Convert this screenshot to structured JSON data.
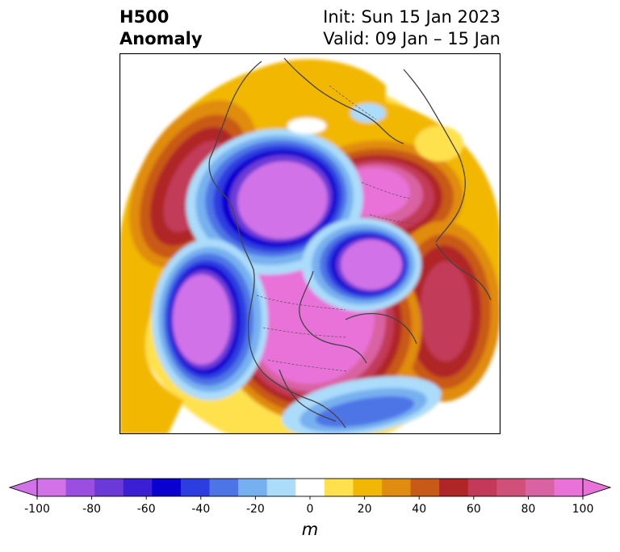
{
  "title": {
    "left_line1": "H500",
    "left_line2": "Anomaly",
    "right_line1": "Init: Sun 15 Jan 2023",
    "right_line2": "Valid: 09 Jan – 15 Jan"
  },
  "colorbar": {
    "unit": "m",
    "tick_labels": [
      "-100",
      "-80",
      "-60",
      "-40",
      "-20",
      "0",
      "20",
      "40",
      "60",
      "80",
      "100"
    ],
    "boundaries": [
      -100,
      -90,
      -80,
      -70,
      -60,
      -50,
      -40,
      -30,
      -20,
      -10,
      10,
      20,
      30,
      40,
      50,
      60,
      70,
      80,
      90,
      100
    ],
    "colors": [
      "#d172e8",
      "#9a4fe0",
      "#6b3ad6",
      "#3a1fd3",
      "#0a00d0",
      "#2d3ee0",
      "#4e75e6",
      "#77b0f0",
      "#abdcfa",
      "#ffffff",
      "#ffe14e",
      "#f2b705",
      "#e08c10",
      "#c85a18",
      "#b02626",
      "#c23a58",
      "#cf5078",
      "#d962a2",
      "#e872d8"
    ],
    "under_color": "#d172e8",
    "over_color": "#e872d8"
  },
  "map": {
    "projection": "north-polar-stereographic",
    "field": "500 hPa geopotential height anomaly"
  }
}
